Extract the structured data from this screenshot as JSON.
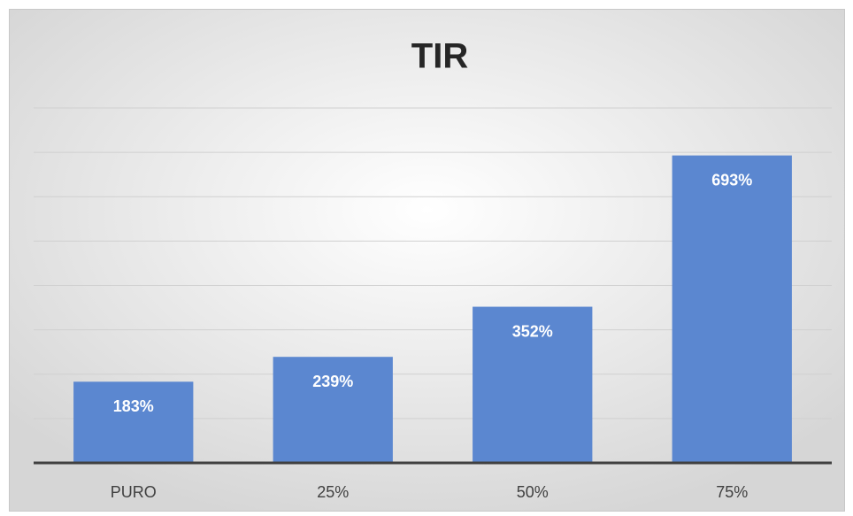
{
  "chart_data": {
    "type": "bar",
    "title": "TIR",
    "categories": [
      "PURO",
      "25%",
      "50%",
      "75%"
    ],
    "values": [
      183,
      239,
      352,
      693
    ],
    "value_labels": [
      "183%",
      "239%",
      "352%",
      "693%"
    ],
    "color": "#5b87d0",
    "ylim": [
      0,
      800
    ],
    "yticks": [
      0,
      100,
      200,
      300,
      400,
      500,
      600,
      700,
      800
    ],
    "grid": true
  }
}
